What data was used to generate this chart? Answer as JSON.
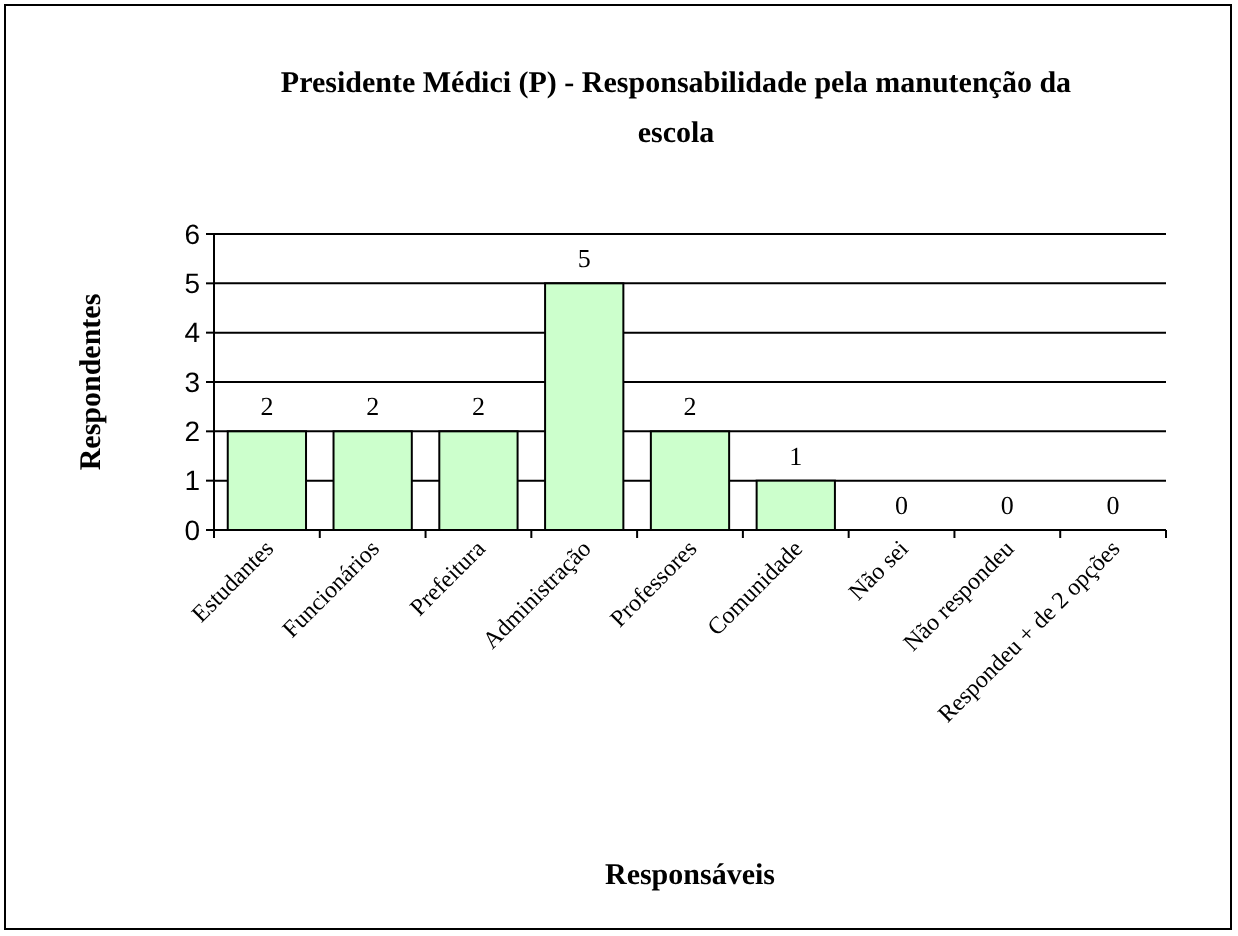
{
  "chart_data": {
    "type": "bar",
    "title": "Presidente Médici (P) - Responsabilidade pela manutenção da escola",
    "xlabel": "Responsáveis",
    "ylabel": "Respondentes",
    "categories": [
      "Estudantes",
      "Funcionários",
      "Prefeitura",
      "Administração",
      "Professores",
      "Comunidade",
      "Não sei",
      "Não respondeu",
      "Respondeu + de 2 opções"
    ],
    "values": [
      2,
      2,
      2,
      5,
      2,
      1,
      0,
      0,
      0
    ],
    "color": "#ccffcc",
    "ylim": [
      0,
      6
    ],
    "yticks": [
      0,
      1,
      2,
      3,
      4,
      5,
      6
    ],
    "grid": "y",
    "data_labels": true
  }
}
